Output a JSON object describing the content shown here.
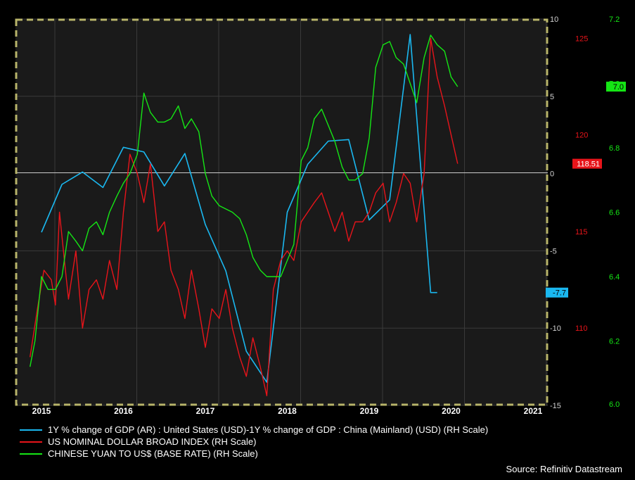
{
  "chart_data": {
    "type": "line",
    "x_tick_labels": [
      "2015",
      "2016",
      "2017",
      "2018",
      "2019",
      "2020",
      "2021"
    ],
    "x_range": [
      2014.85,
      2021.65
    ],
    "grid": true,
    "legend_placement": "bottom",
    "axes": {
      "gdp": {
        "ticks": [
          10,
          5,
          0,
          -5,
          -10,
          -15
        ],
        "range": [
          -15,
          10
        ],
        "color": "#1ab8f0"
      },
      "usd_index": {
        "ticks": [
          125,
          120,
          115,
          110
        ],
        "range": [
          106,
          126
        ],
        "color": "#e8141a"
      },
      "cny": {
        "ticks": [
          7.2,
          7.0,
          6.8,
          6.6,
          6.4,
          6.2,
          6.0
        ],
        "range": [
          6.0,
          7.2
        ],
        "color": "#15e615"
      }
    },
    "series": [
      {
        "name": "1Y % change of GDP (AR) : United States (USD)-1Y % change of GDP : China (Mainland) (USD) (RH Scale)",
        "axis": "gdp",
        "color": "#1ab8f0",
        "last_value_label": "-7.7",
        "x": [
          2015.0,
          2015.25,
          2015.5,
          2015.75,
          2016.0,
          2016.25,
          2016.5,
          2016.75,
          2017.0,
          2017.25,
          2017.5,
          2017.75,
          2018.0,
          2018.25,
          2018.5,
          2018.75,
          2019.0,
          2019.25,
          2019.5,
          2019.75,
          2019.83
        ],
        "y": [
          -3.8,
          -0.7,
          0.1,
          -0.9,
          1.7,
          1.4,
          -0.8,
          1.3,
          -3.3,
          -6.3,
          -11.5,
          -13.5,
          -2.5,
          0.6,
          2.1,
          2.2,
          -3.0,
          -1.7,
          9.0,
          -7.7,
          -7.7
        ]
      },
      {
        "name": "US NOMINAL DOLLAR BROAD INDEX (RH Scale)",
        "axis": "usd_index",
        "color": "#e8141a",
        "last_value_label": "118.51",
        "x": [
          2014.86,
          2014.95,
          2015.03,
          2015.12,
          2015.17,
          2015.22,
          2015.28,
          2015.33,
          2015.42,
          2015.5,
          2015.58,
          2015.67,
          2015.75,
          2015.83,
          2015.92,
          2016.0,
          2016.08,
          2016.17,
          2016.25,
          2016.33,
          2016.42,
          2016.5,
          2016.58,
          2016.67,
          2016.75,
          2016.83,
          2016.92,
          2017.0,
          2017.08,
          2017.17,
          2017.25,
          2017.33,
          2017.42,
          2017.5,
          2017.58,
          2017.67,
          2017.75,
          2017.83,
          2017.92,
          2018.0,
          2018.08,
          2018.17,
          2018.25,
          2018.33,
          2018.42,
          2018.5,
          2018.58,
          2018.67,
          2018.75,
          2018.83,
          2018.92,
          2019.0,
          2019.08,
          2019.17,
          2019.25,
          2019.33,
          2019.42,
          2019.5,
          2019.58,
          2019.67,
          2019.75,
          2019.83,
          2019.92,
          2020.0,
          2020.08
        ],
        "y": [
          108.5,
          111.0,
          113.0,
          112.5,
          111.2,
          116.0,
          113.5,
          111.5,
          114.0,
          110.0,
          112.0,
          112.5,
          111.5,
          113.5,
          112.0,
          116.0,
          119.0,
          118.0,
          116.5,
          118.5,
          115.0,
          115.5,
          113.0,
          112.0,
          110.5,
          113.0,
          111.0,
          109.0,
          111.0,
          110.5,
          112.0,
          110.0,
          108.5,
          107.5,
          109.5,
          108.0,
          106.5,
          112.0,
          113.5,
          114.0,
          113.5,
          115.5,
          116.0,
          116.5,
          117.0,
          116.0,
          115.0,
          116.0,
          114.5,
          115.5,
          115.5,
          116.0,
          117.0,
          117.5,
          115.5,
          116.5,
          118.0,
          117.5,
          115.5,
          118.0,
          125.0,
          123.0,
          121.5,
          120.0,
          118.51
        ]
      },
      {
        "name": "CHINESE YUAN TO US$ (BASE RATE) (RH Scale)",
        "axis": "cny",
        "color": "#15e615",
        "last_value_label": "7.0",
        "x": [
          2014.86,
          2014.92,
          2015.0,
          2015.08,
          2015.17,
          2015.25,
          2015.33,
          2015.42,
          2015.5,
          2015.58,
          2015.67,
          2015.75,
          2015.83,
          2015.92,
          2016.0,
          2016.08,
          2016.17,
          2016.25,
          2016.33,
          2016.42,
          2016.5,
          2016.58,
          2016.67,
          2016.75,
          2016.83,
          2016.92,
          2017.0,
          2017.08,
          2017.17,
          2017.25,
          2017.33,
          2017.42,
          2017.5,
          2017.58,
          2017.67,
          2017.75,
          2017.83,
          2017.92,
          2018.0,
          2018.08,
          2018.17,
          2018.25,
          2018.33,
          2018.42,
          2018.5,
          2018.58,
          2018.67,
          2018.75,
          2018.83,
          2018.92,
          2019.0,
          2019.08,
          2019.17,
          2019.25,
          2019.33,
          2019.42,
          2019.5,
          2019.58,
          2019.67,
          2019.75,
          2019.83,
          2019.92,
          2020.0,
          2020.08
        ],
        "y": [
          6.12,
          6.2,
          6.4,
          6.36,
          6.36,
          6.4,
          6.54,
          6.51,
          6.48,
          6.55,
          6.57,
          6.53,
          6.6,
          6.65,
          6.69,
          6.72,
          6.78,
          6.97,
          6.91,
          6.88,
          6.88,
          6.89,
          6.93,
          6.86,
          6.89,
          6.85,
          6.72,
          6.65,
          6.62,
          6.61,
          6.6,
          6.58,
          6.53,
          6.46,
          6.42,
          6.4,
          6.4,
          6.4,
          6.45,
          6.5,
          6.76,
          6.8,
          6.89,
          6.92,
          6.87,
          6.82,
          6.74,
          6.7,
          6.7,
          6.72,
          6.83,
          7.05,
          7.12,
          7.13,
          7.08,
          7.06,
          7.0,
          6.94,
          7.08,
          7.15,
          7.12,
          7.1,
          7.02,
          6.99
        ]
      }
    ]
  },
  "legend": {
    "items": [
      {
        "label": "1Y % change of GDP (AR) : United States (USD)-1Y % change of GDP : China (Mainland) (USD) (RH Scale)",
        "color": "#1ab8f0"
      },
      {
        "label": "US NOMINAL DOLLAR BROAD INDEX (RH Scale)",
        "color": "#e8141a"
      },
      {
        "label": "CHINESE YUAN TO US$ (BASE RATE) (RH Scale)",
        "color": "#15e615"
      }
    ]
  },
  "source": "Source: Refinitiv Datastream",
  "colors": {
    "background": "#000000",
    "plot_background": "#1a1a1a",
    "grid": "#3a3a3a",
    "dashed_border": "#b8b46a",
    "zero_line": "#cccccc"
  }
}
